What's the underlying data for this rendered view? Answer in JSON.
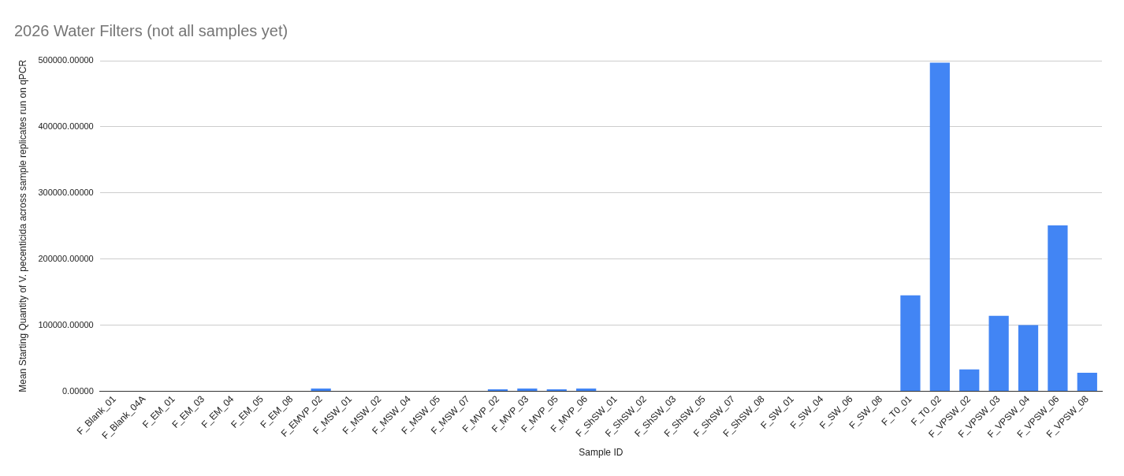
{
  "chart_data": {
    "type": "bar",
    "title": "2026 Water Filters (not all samples yet)",
    "xlabel": "Sample ID",
    "ylabel": "Mean Starting Quantity of V. pecenticida across sample replicates run on qPCR",
    "categories": [
      "F_Blank_01",
      "F_Blank_04A",
      "F_EM_01",
      "F_EM_03",
      "F_EM_04",
      "F_EM_05",
      "F_EM_08",
      "F_EMVP_02",
      "F_MSW_01",
      "F_MSW_02",
      "F_MSW_04",
      "F_MSW_05",
      "F_MSW_07",
      "F_MVP_02",
      "F_MVP_03",
      "F_MVP_05",
      "F_MVP_06",
      "F_ShSW_01",
      "F_ShSW_02",
      "F_ShSW_03",
      "F_ShSW_05",
      "F_ShSW_07",
      "F_ShSW_08",
      "F_SW_01",
      "F_SW_04",
      "F_SW_06",
      "F_SW_08",
      "F_T0_01",
      "F_T0_02",
      "F_VPSW_02",
      "F_VPSW_03",
      "F_VPSW_04",
      "F_VPSW_06",
      "F_VPSW_08"
    ],
    "values": [
      0,
      0,
      0,
      0,
      0,
      0,
      0,
      4000,
      0,
      0,
      0,
      0,
      0,
      3000,
      4000,
      3000,
      4000,
      0,
      0,
      0,
      0,
      0,
      0,
      0,
      0,
      0,
      0,
      145000,
      497000,
      33000,
      114000,
      100000,
      251000,
      28000
    ],
    "color": "#4285f4",
    "ylim": [
      0,
      500000
    ],
    "yticks": [
      {
        "value": 0,
        "label": "0.00000"
      },
      {
        "value": 100000,
        "label": "100000.00000"
      },
      {
        "value": 200000,
        "label": "200000.00000"
      },
      {
        "value": 300000,
        "label": "300000.00000"
      },
      {
        "value": 400000,
        "label": "400000.00000"
      },
      {
        "value": 500000,
        "label": "500000.00000"
      }
    ],
    "grid": "y"
  }
}
